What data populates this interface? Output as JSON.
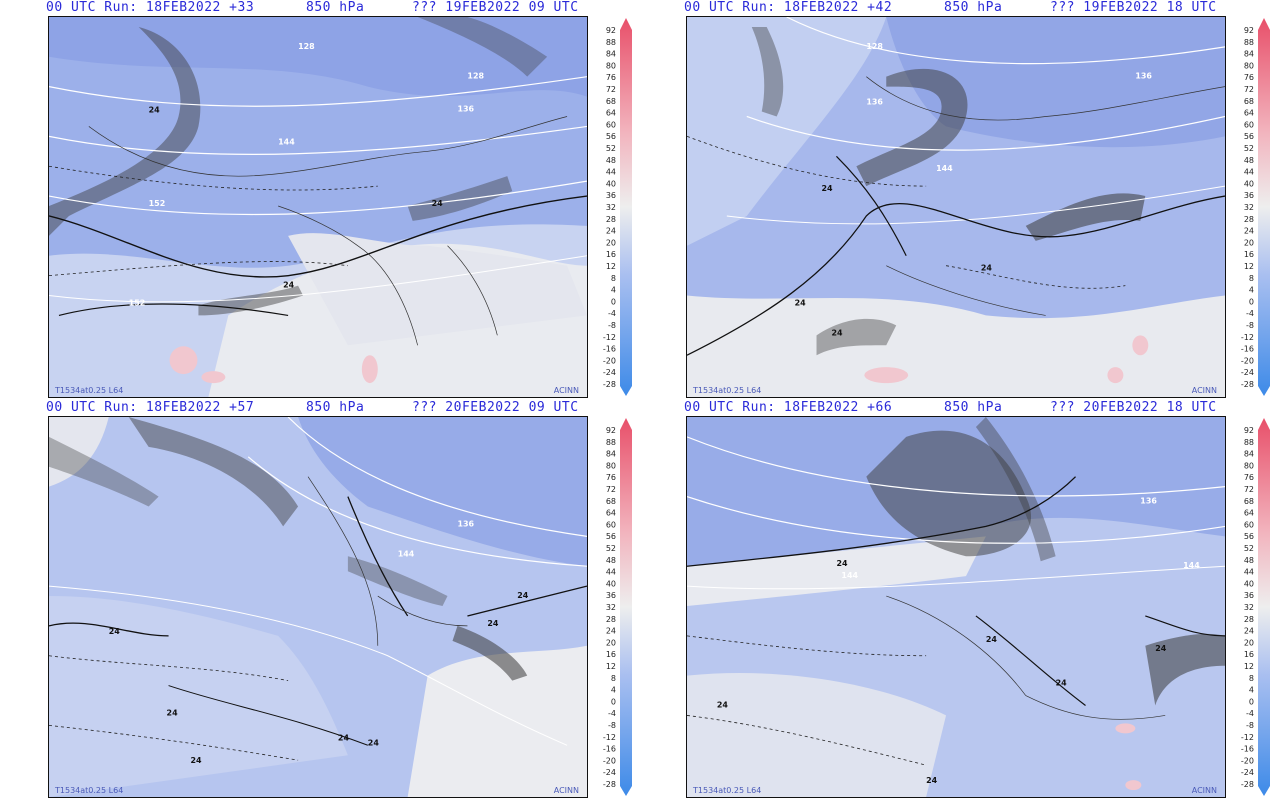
{
  "panels": [
    {
      "run_label": "00 UTC Run: 18FEB2022 +33",
      "level": "850 hPa",
      "valid": "??? 19FEB2022 09 UTC",
      "footer_left": "T1534at0.25 L64",
      "footer_right": "ACINN",
      "contour_labels": [
        "128",
        "128",
        "136",
        "144",
        "152",
        "152",
        "24",
        "24",
        "24"
      ]
    },
    {
      "run_label": "00 UTC Run: 18FEB2022 +42",
      "level": "850 hPa",
      "valid": "??? 19FEB2022 18 UTC",
      "footer_left": "T1534at0.25 L64",
      "footer_right": "ACINN",
      "contour_labels": [
        "128",
        "136",
        "136",
        "144",
        "24",
        "24",
        "24",
        "24"
      ]
    },
    {
      "run_label": "00 UTC Run: 18FEB2022 +57",
      "level": "850 hPa",
      "valid": "??? 20FEB2022 09 UTC",
      "footer_left": "T1534at0.25 L64",
      "footer_right": "ACINN",
      "contour_labels": [
        "136",
        "144",
        "24",
        "24",
        "24",
        "24",
        "24",
        "24",
        "24"
      ]
    },
    {
      "run_label": "00 UTC Run: 18FEB2022 +66",
      "level": "850 hPa",
      "valid": "??? 20FEB2022 18 UTC",
      "footer_left": "T1534at0.25 L64",
      "footer_right": "ACINN",
      "contour_labels": [
        "136",
        "144",
        "144",
        "24",
        "24",
        "24",
        "24",
        "24",
        "24"
      ]
    }
  ],
  "colorbar": {
    "ticks": [
      "92",
      "88",
      "84",
      "80",
      "76",
      "72",
      "68",
      "64",
      "60",
      "56",
      "52",
      "48",
      "44",
      "40",
      "36",
      "32",
      "28",
      "24",
      "20",
      "16",
      "12",
      "8",
      "4",
      "0",
      "-4",
      "-8",
      "-12",
      "-16",
      "-20",
      "-24",
      "-28"
    ],
    "colors": {
      "low": "#3d8ae8",
      "mid_low": "#a9bff0",
      "neutral": "#eeeeee",
      "mid_high": "#f2b3bd",
      "high": "#e8506a"
    }
  },
  "map_colors": {
    "blue_field": "#98acea",
    "light_field": "#c9d4f2",
    "neutral_field": "#ececef",
    "pink_field": "#f3cdd3",
    "shading": "#3a3a3a"
  }
}
